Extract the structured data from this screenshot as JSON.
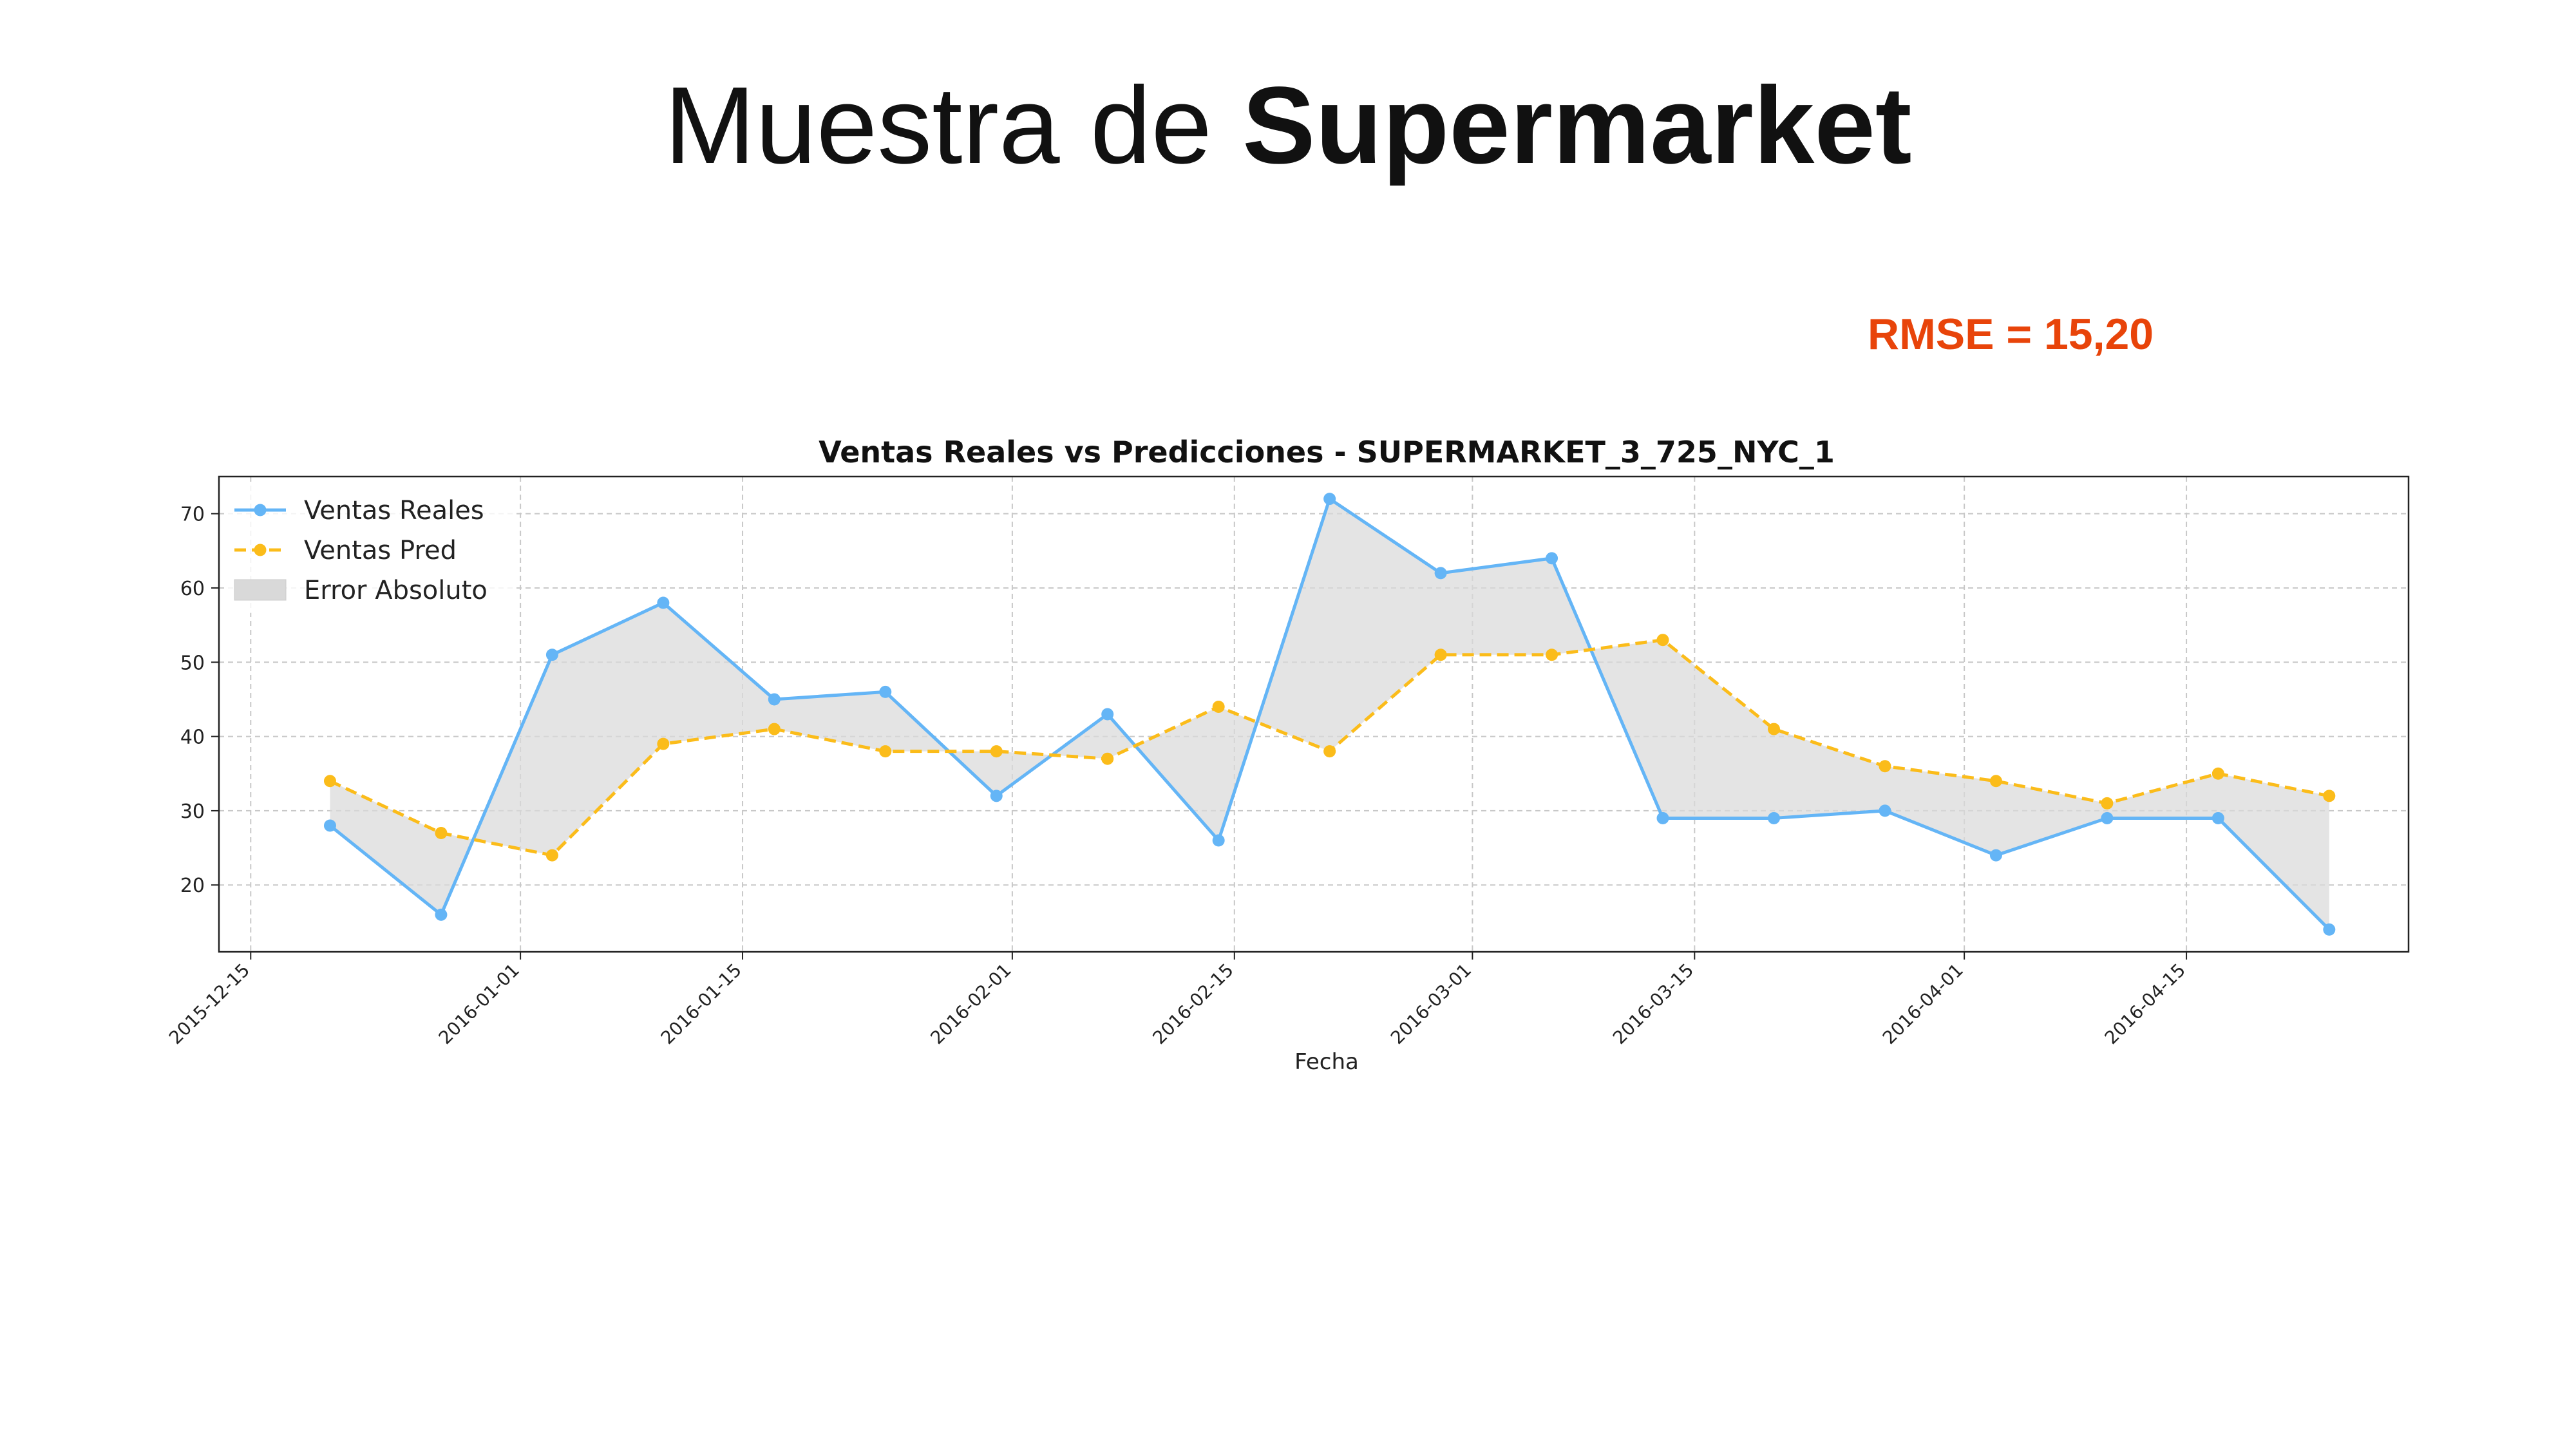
{
  "slide": {
    "title_prefix": "Muestra de",
    "title_bold": "Supermarket",
    "rmse_label": "RMSE = 15,20"
  },
  "chart_data": {
    "type": "line",
    "title": "Ventas Reales vs Predicciones - SUPERMARKET_3_725_NYC_1",
    "xlabel": "Fecha",
    "ylabel": "",
    "x": [
      "2015-12-20",
      "2015-12-27",
      "2016-01-03",
      "2016-01-10",
      "2016-01-17",
      "2016-01-24",
      "2016-01-31",
      "2016-02-07",
      "2016-02-14",
      "2016-02-21",
      "2016-02-28",
      "2016-03-06",
      "2016-03-13",
      "2016-03-20",
      "2016-03-27",
      "2016-04-03",
      "2016-04-10",
      "2016-04-17",
      "2016-04-24"
    ],
    "series": [
      {
        "name": "Ventas Reales",
        "color": "#64b5f6",
        "style": "solid",
        "values": [
          28,
          16,
          51,
          58,
          45,
          46,
          32,
          43,
          26,
          72,
          62,
          64,
          29,
          29,
          30,
          24,
          29,
          29,
          14
        ]
      },
      {
        "name": "Ventas Pred",
        "color": "#fbbc1a",
        "style": "dashed",
        "values": [
          34,
          27,
          24,
          39,
          41,
          38,
          38,
          37,
          44,
          38,
          51,
          51,
          53,
          41,
          36,
          34,
          31,
          35,
          32
        ]
      }
    ],
    "fill_between": {
      "name": "Error Absoluto",
      "color": "#d9d9d9"
    },
    "x_ticks": [
      "2015-12-15",
      "2016-01-01",
      "2016-01-15",
      "2016-02-01",
      "2016-02-15",
      "2016-03-01",
      "2016-03-15",
      "2016-04-01",
      "2016-04-15"
    ],
    "y_ticks": [
      20,
      30,
      40,
      50,
      60,
      70
    ],
    "xlim": [
      "2015-12-13",
      "2016-04-29"
    ],
    "ylim": [
      11,
      75
    ],
    "grid": true,
    "legend_position": "top-left"
  }
}
